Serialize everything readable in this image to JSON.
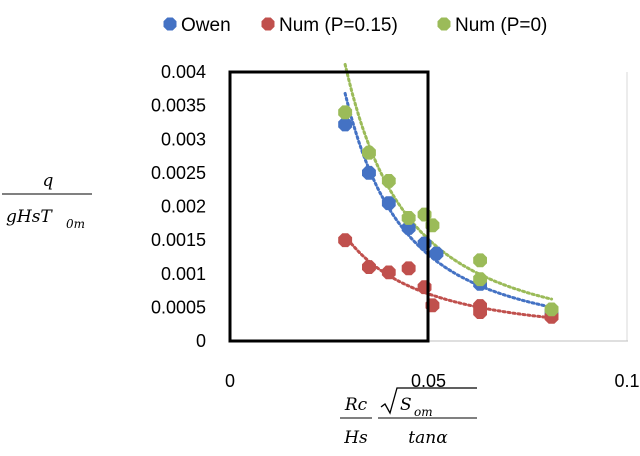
{
  "chart_data": {
    "type": "scatter",
    "xlim": [
      0,
      0.1
    ],
    "ylim": [
      0,
      0.004
    ],
    "x_ticks": [
      "0",
      "0.05",
      "0.1"
    ],
    "y_ticks": [
      "0",
      "0.0005",
      "0.001",
      "0.0015",
      "0.002",
      "0.0025",
      "0.003",
      "0.0035",
      "0.004"
    ],
    "grid": "vertical",
    "legend_position": "top",
    "ylabel": {
      "numerator": "q",
      "denominator": "gHsT",
      "denominator_sub": "0m"
    },
    "xlabel": {
      "num1": "Rc",
      "den1": "Hs",
      "num2": "S",
      "num2_sub": "om",
      "den2": "tanα"
    },
    "series": [
      {
        "name": "Owen",
        "color": "#4472C4",
        "trendline": "power",
        "x": [
          0.029,
          0.035,
          0.04,
          0.045,
          0.049,
          0.052,
          0.063,
          0.081
        ],
        "y": [
          0.00322,
          0.0025,
          0.00205,
          0.00168,
          0.00145,
          0.0013,
          0.00085,
          0.00043
        ]
      },
      {
        "name": "Num (P=0.15)",
        "color": "#C0504D",
        "trendline": "power",
        "x": [
          0.029,
          0.035,
          0.04,
          0.045,
          0.049,
          0.051,
          0.063,
          0.063,
          0.081
        ],
        "y": [
          0.0015,
          0.0011,
          0.00102,
          0.00108,
          0.0008,
          0.00053,
          0.00052,
          0.00043,
          0.00036
        ]
      },
      {
        "name": "Num (P=0)",
        "color": "#9BBB59",
        "trendline": "power",
        "x": [
          0.029,
          0.035,
          0.04,
          0.045,
          0.049,
          0.051,
          0.063,
          0.063,
          0.081
        ],
        "y": [
          0.0034,
          0.0028,
          0.00238,
          0.00183,
          0.00188,
          0.00172,
          0.0012,
          0.00092,
          0.00047
        ]
      }
    ]
  }
}
